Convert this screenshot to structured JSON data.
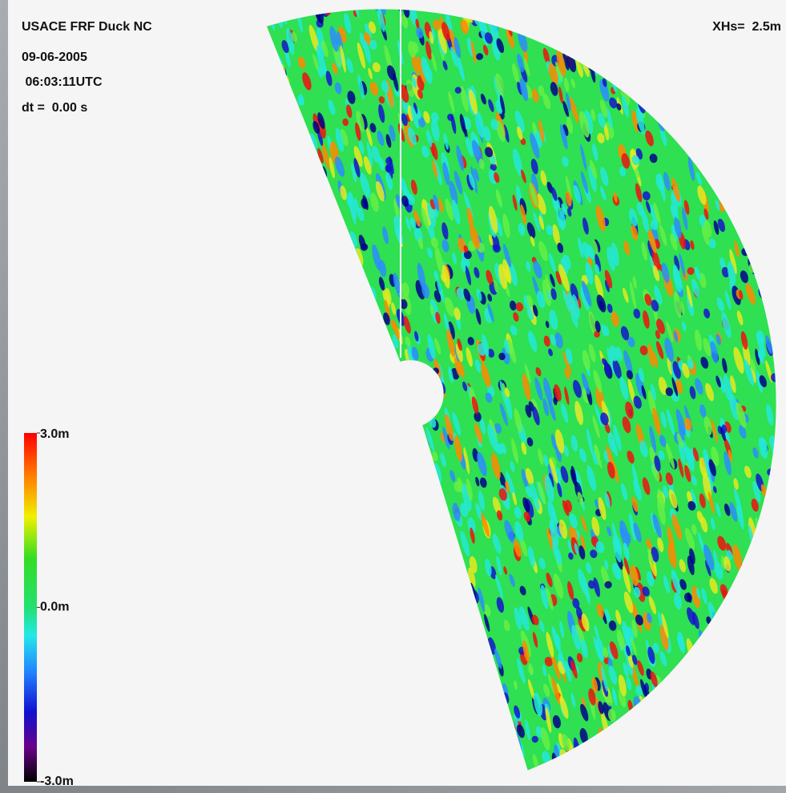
{
  "header": {
    "site": "USACE FRF Duck NC",
    "date": "09-06-2005",
    "time": " 06:03:11UTC",
    "dt": "dt =  0.00 s"
  },
  "xhs": "XHs=  2.5m",
  "colorbar": {
    "range": [
      -3,
      3
    ],
    "ticks": [
      {
        "value": 3,
        "label": "3.0m"
      },
      {
        "value": 0,
        "label": "0.0m"
      },
      {
        "value": -3,
        "label": "-3.0m"
      }
    ]
  }
}
